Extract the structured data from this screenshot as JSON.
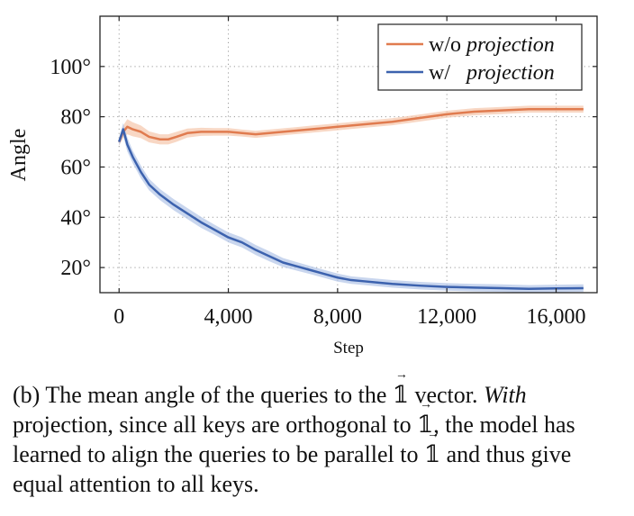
{
  "chart_data": {
    "type": "line",
    "xlabel": "Step",
    "ylabel": "Angle",
    "xlim": [
      -700,
      17500
    ],
    "ylim": [
      10,
      120
    ],
    "xticks": [
      0,
      4000,
      8000,
      12000,
      16000
    ],
    "xtick_labels": [
      "0",
      "4,000",
      "8,000",
      "12,000",
      "16,000"
    ],
    "yticks": [
      20,
      40,
      60,
      80,
      100
    ],
    "ytick_labels": [
      "20°",
      "40°",
      "60°",
      "80°",
      "100°"
    ],
    "grid": "dotted",
    "legend_position": "top-right",
    "series": [
      {
        "name_plain": "w/o ",
        "name_italic": "projection",
        "color": "#E07B4F",
        "band_color": "#F5C9B0",
        "x": [
          0,
          150,
          300,
          500,
          800,
          1100,
          1500,
          1800,
          2100,
          2500,
          3000,
          3500,
          4000,
          4500,
          5000,
          5500,
          6000,
          6500,
          7000,
          7500,
          8000,
          8500,
          9000,
          10000,
          11000,
          12000,
          13000,
          14000,
          15000,
          16000,
          17000
        ],
        "y": [
          70,
          74,
          76,
          75,
          74,
          72,
          71,
          71,
          72,
          73.5,
          74,
          74,
          74,
          73.5,
          73,
          73.5,
          74,
          74.5,
          75,
          75.5,
          76,
          76.5,
          77,
          78,
          79.5,
          81,
          82,
          82.5,
          83,
          83,
          83
        ],
        "band": [
          1.5,
          2.5,
          3,
          2.8,
          2.5,
          2.2,
          2,
          2,
          2,
          1.8,
          1.6,
          1.5,
          1.5,
          1.4,
          1.4,
          1.4,
          1.4,
          1.4,
          1.4,
          1.4,
          1.4,
          1.4,
          1.4,
          1.4,
          1.4,
          1.4,
          1.4,
          1.4,
          1.4,
          1.4,
          1.4
        ]
      },
      {
        "name_plain": "w/   ",
        "name_italic": "projection",
        "color": "#3C62AE",
        "band_color": "#B7C8E8",
        "x": [
          0,
          150,
          300,
          500,
          800,
          1100,
          1500,
          2000,
          2500,
          3000,
          3500,
          4000,
          4500,
          5000,
          5500,
          6000,
          6500,
          7000,
          7500,
          8000,
          8500,
          9000,
          9500,
          10000,
          11000,
          12000,
          13000,
          14000,
          15000,
          16000,
          17000
        ],
        "y": [
          70,
          75,
          69,
          64,
          58,
          53,
          49,
          45,
          41.5,
          38,
          35,
          32,
          30,
          27,
          24.5,
          22,
          20.5,
          19,
          17.5,
          16,
          15,
          14.5,
          14,
          13.5,
          12.8,
          12.3,
          12,
          11.8,
          11.5,
          11.7,
          11.8
        ],
        "band": [
          1.5,
          2.5,
          2.8,
          2.5,
          2.5,
          2.3,
          2.2,
          2.2,
          2.2,
          2.2,
          2,
          2,
          2,
          2,
          2,
          1.8,
          1.7,
          1.6,
          1.6,
          1.6,
          1.5,
          1.5,
          1.5,
          1.5,
          1.5,
          1.5,
          1.5,
          1.5,
          1.5,
          1.5,
          1.5
        ]
      }
    ]
  },
  "caption": {
    "prefix": "(b) The mean angle of the queries to the ",
    "one_symbol": "𝟙",
    "part2": " vector. ",
    "with_word": "With",
    "part3": " projection, since all keys are orthogonal to ",
    "part4": ", the model has learned to align the queries to be parallel to ",
    "part5": " and thus give equal attention to all keys."
  }
}
